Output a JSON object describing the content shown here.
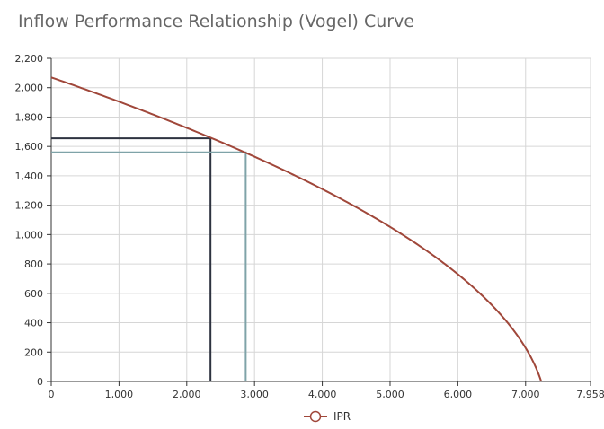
{
  "chart_data": {
    "type": "line",
    "title": "Inflow Performance Relationship (Vogel) Curve",
    "xlabel": "",
    "ylabel": "",
    "xlim": [
      0,
      7958
    ],
    "ylim": [
      0,
      2200
    ],
    "xticks": [
      0,
      1000,
      2000,
      3000,
      4000,
      5000,
      6000,
      7000,
      7958
    ],
    "xtick_labels": [
      "0",
      "1,000",
      "2,000",
      "3,000",
      "4,000",
      "5,000",
      "6,000",
      "7,000",
      "7,958"
    ],
    "yticks": [
      0,
      200,
      400,
      600,
      800,
      1000,
      1200,
      1400,
      1600,
      1800,
      2000,
      2200
    ],
    "ytick_labels": [
      "0",
      "200",
      "400",
      "600",
      "800",
      "1,000",
      "1,200",
      "1,400",
      "1,600",
      "1,800",
      "2,000",
      "2,200"
    ],
    "grid": true,
    "legend_position": "bottom-center",
    "series": [
      {
        "name": "IPR",
        "color": "#a0473a",
        "model": "vogel",
        "reservoir_pressure": 2070,
        "qmax": 7230
      }
    ],
    "reference_lines": [
      {
        "color": "#2e3340",
        "x": 2350,
        "y": 1655
      },
      {
        "color": "#7fa3a8",
        "x": 2870,
        "y": 1560
      }
    ]
  }
}
